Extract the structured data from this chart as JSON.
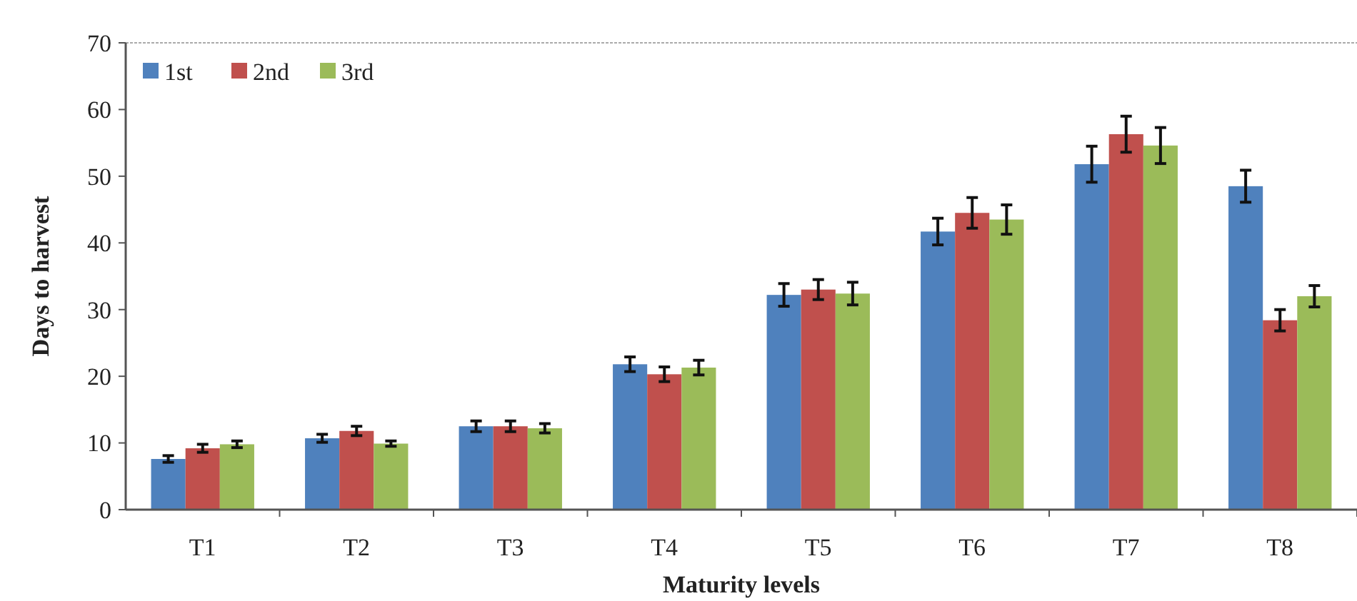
{
  "chart_data": {
    "type": "bar",
    "xlabel": "Maturity levels",
    "ylabel": "Days to harvest",
    "categories": [
      "T1",
      "T2",
      "T3",
      "T4",
      "T5",
      "T6",
      "T7",
      "T8"
    ],
    "series": [
      {
        "name": "1st",
        "color": "#4f81bd",
        "values": [
          7.6,
          10.7,
          12.5,
          21.8,
          32.2,
          41.7,
          51.8,
          48.5
        ],
        "errors": [
          0.5,
          0.6,
          0.8,
          1.1,
          1.7,
          2,
          2.7,
          2.4
        ]
      },
      {
        "name": "2nd",
        "color": "#c0504d",
        "values": [
          9.2,
          11.8,
          12.5,
          20.3,
          33,
          44.5,
          56.3,
          28.4
        ],
        "errors": [
          0.6,
          0.7,
          0.8,
          1.1,
          1.5,
          2.3,
          2.7,
          1.6
        ]
      },
      {
        "name": "3rd",
        "color": "#9bbb59",
        "values": [
          9.8,
          9.9,
          12.2,
          21.3,
          32.4,
          43.5,
          54.6,
          32
        ],
        "errors": [
          0.5,
          0.4,
          0.7,
          1.1,
          1.7,
          2.2,
          2.7,
          1.6
        ]
      }
    ],
    "ylim": [
      0,
      70
    ],
    "yticks": [
      0,
      10,
      20,
      30,
      40,
      50,
      60,
      70
    ],
    "legend": "top left"
  }
}
